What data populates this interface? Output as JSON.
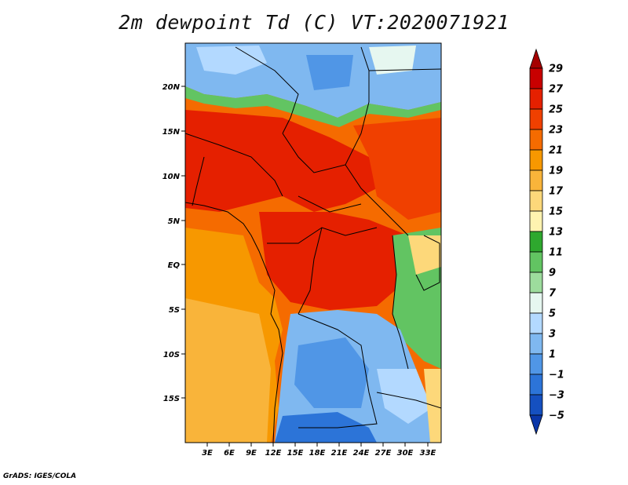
{
  "title": "2m dewpoint Td (C) VT:2020071921",
  "footer": "GrADS: IGES/COLA",
  "map": {
    "lat_labels": [
      "20N",
      "15N",
      "10N",
      "5N",
      "EQ",
      "5S",
      "10S",
      "15S"
    ],
    "lon_labels": [
      "3E",
      "6E",
      "9E",
      "12E",
      "15E",
      "18E",
      "21E",
      "24E",
      "27E",
      "30E",
      "33E"
    ]
  },
  "colorbar": {
    "levels": [
      "29",
      "27",
      "25",
      "23",
      "21",
      "19",
      "17",
      "15",
      "13",
      "11",
      "9",
      "7",
      "5",
      "3",
      "1",
      "-1",
      "-3",
      "-5"
    ],
    "colors": [
      "#a50000",
      "#c80000",
      "#e52000",
      "#f04000",
      "#f56b00",
      "#f79800",
      "#f9b43a",
      "#fdd87a",
      "#fef3b0",
      "#2ea82e",
      "#62c462",
      "#9ddc9d",
      "#e6f7f0",
      "#b3d9ff",
      "#7fb8f0",
      "#5096e6",
      "#2c74d8",
      "#1550c0",
      "#0a36a8"
    ]
  }
}
